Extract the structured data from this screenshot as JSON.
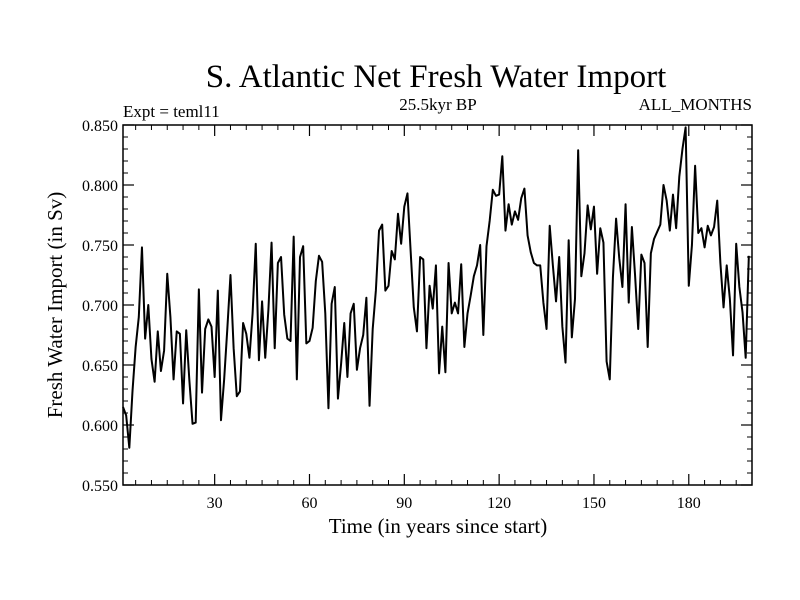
{
  "chart_data": {
    "type": "line",
    "title": "S. Atlantic Net Fresh Water Import",
    "subtitle_left": "Expt = teml11",
    "subtitle_center": "25.5kyr BP",
    "subtitle_right": "ALL_MONTHS",
    "xlabel": "Time (in years since start)",
    "ylabel": "Fresh Water Import (in Sv)",
    "xlim": [
      1,
      200
    ],
    "ylim": [
      0.55,
      0.85
    ],
    "xticks": [
      30,
      60,
      90,
      120,
      150,
      180
    ],
    "yticks": [
      0.55,
      0.6,
      0.65,
      0.7,
      0.75,
      0.8,
      0.85
    ],
    "ytick_labels": [
      "0.550",
      "0.600",
      "0.650",
      "0.700",
      "0.750",
      "0.800",
      "0.850"
    ],
    "grid": false,
    "series": [
      {
        "name": "Net Fresh Water Import",
        "color": "#000000",
        "x_start": 1,
        "x_step": 1,
        "values": [
          0.615,
          0.608,
          0.581,
          0.628,
          0.665,
          0.69,
          0.748,
          0.672,
          0.7,
          0.655,
          0.636,
          0.678,
          0.645,
          0.662,
          0.726,
          0.69,
          0.638,
          0.678,
          0.676,
          0.618,
          0.679,
          0.637,
          0.601,
          0.602,
          0.713,
          0.627,
          0.68,
          0.688,
          0.682,
          0.64,
          0.712,
          0.604,
          0.638,
          0.68,
          0.725,
          0.664,
          0.624,
          0.628,
          0.685,
          0.676,
          0.656,
          0.693,
          0.751,
          0.654,
          0.703,
          0.656,
          0.696,
          0.752,
          0.664,
          0.735,
          0.74,
          0.692,
          0.672,
          0.67,
          0.757,
          0.638,
          0.74,
          0.749,
          0.668,
          0.67,
          0.681,
          0.72,
          0.741,
          0.736,
          0.693,
          0.614,
          0.701,
          0.715,
          0.622,
          0.651,
          0.685,
          0.64,
          0.693,
          0.701,
          0.646,
          0.664,
          0.675,
          0.706,
          0.616,
          0.68,
          0.712,
          0.762,
          0.767,
          0.712,
          0.716,
          0.745,
          0.738,
          0.776,
          0.751,
          0.782,
          0.793,
          0.745,
          0.698,
          0.678,
          0.74,
          0.738,
          0.664,
          0.716,
          0.697,
          0.733,
          0.643,
          0.682,
          0.644,
          0.735,
          0.693,
          0.702,
          0.693,
          0.734,
          0.665,
          0.693,
          0.708,
          0.724,
          0.733,
          0.75,
          0.675,
          0.749,
          0.77,
          0.796,
          0.791,
          0.792,
          0.824,
          0.762,
          0.784,
          0.767,
          0.778,
          0.771,
          0.789,
          0.797,
          0.758,
          0.744,
          0.735,
          0.733,
          0.733,
          0.702,
          0.68,
          0.766,
          0.733,
          0.703,
          0.74,
          0.682,
          0.652,
          0.754,
          0.673,
          0.705,
          0.829,
          0.724,
          0.743,
          0.783,
          0.763,
          0.782,
          0.726,
          0.764,
          0.752,
          0.653,
          0.638,
          0.723,
          0.772,
          0.739,
          0.715,
          0.784,
          0.702,
          0.765,
          0.725,
          0.68,
          0.742,
          0.735,
          0.665,
          0.743,
          0.755,
          0.761,
          0.767,
          0.8,
          0.787,
          0.762,
          0.792,
          0.764,
          0.807,
          0.83,
          0.848,
          0.716,
          0.75,
          0.816,
          0.76,
          0.764,
          0.748,
          0.766,
          0.758,
          0.765,
          0.787,
          0.735,
          0.698,
          0.733,
          0.705,
          0.658,
          0.751,
          0.715,
          0.694,
          0.656,
          0.741
        ]
      }
    ]
  }
}
